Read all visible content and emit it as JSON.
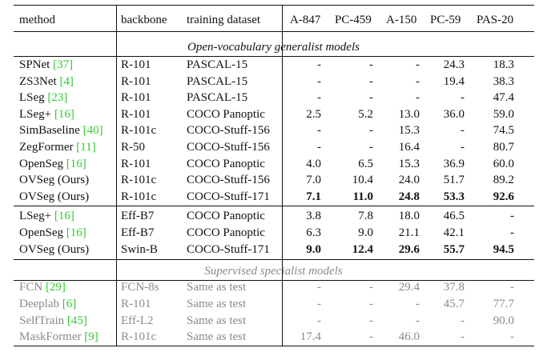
{
  "headers": {
    "method": "method",
    "backbone": "backbone",
    "dataset": "training dataset",
    "a847": "A-847",
    "pc459": "PC-459",
    "a150": "A-150",
    "pc59": "PC-59",
    "pas20": "PAS-20"
  },
  "sections": {
    "generalist": "Open-vocabulary generalist models",
    "specialist": "Supervised specialist models"
  },
  "group1": [
    {
      "name": "SPNet ",
      "cite": "[37]",
      "backbone": "R-101",
      "dataset": "PASCAL-15",
      "v": [
        "-",
        "-",
        "-",
        "24.3",
        "18.3"
      ]
    },
    {
      "name": "ZS3Net ",
      "cite": "[4]",
      "backbone": "R-101",
      "dataset": "PASCAL-15",
      "v": [
        "-",
        "-",
        "-",
        "19.4",
        "38.3"
      ]
    },
    {
      "name": "LSeg ",
      "cite": "[23]",
      "backbone": "R-101",
      "dataset": "PASCAL-15",
      "v": [
        "-",
        "-",
        "-",
        "-",
        "47.4"
      ]
    },
    {
      "name": "LSeg+ ",
      "cite": "[16]",
      "backbone": "R-101",
      "dataset": "COCO Panoptic",
      "v": [
        "2.5",
        "5.2",
        "13.0",
        "36.0",
        "59.0"
      ]
    },
    {
      "name": "SimBaseline ",
      "cite": "[40]",
      "backbone": "R-101c",
      "dataset": "COCO-Stuff-156",
      "v": [
        "-",
        "-",
        "15.3",
        "-",
        "74.5"
      ]
    },
    {
      "name": "ZegFormer ",
      "cite": "[11]",
      "backbone": "R-50",
      "dataset": "COCO-Stuff-156",
      "v": [
        "-",
        "-",
        "16.4",
        "-",
        "80.7"
      ]
    },
    {
      "name": "OpenSeg ",
      "cite": "[16]",
      "backbone": "R-101",
      "dataset": "COCO Panoptic",
      "v": [
        "4.0",
        "6.5",
        "15.3",
        "36.9",
        "60.0"
      ]
    },
    {
      "name": "OVSeg (Ours)",
      "cite": "",
      "backbone": "R-101c",
      "dataset": "COCO-Stuff-156",
      "v": [
        "7.0",
        "10.4",
        "24.0",
        "51.7",
        "89.2"
      ]
    },
    {
      "name": "OVSeg (Ours)",
      "cite": "",
      "backbone": "R-101c",
      "dataset": "COCO-Stuff-171",
      "v": [
        "7.1",
        "11.0",
        "24.8",
        "53.3",
        "92.6"
      ],
      "bold": true
    }
  ],
  "group2": [
    {
      "name": "LSeg+ ",
      "cite": "[16]",
      "backbone": "Eff-B7",
      "dataset": "COCO Panoptic",
      "v": [
        "3.8",
        "7.8",
        "18.0",
        "46.5",
        "-"
      ]
    },
    {
      "name": "OpenSeg ",
      "cite": "[16]",
      "backbone": "Eff-B7",
      "dataset": "COCO Panoptic",
      "v": [
        "6.3",
        "9.0",
        "21.1",
        "42.1",
        "-"
      ]
    },
    {
      "name": "OVSeg (Ours)",
      "cite": "",
      "backbone": "Swin-B",
      "dataset": "COCO-Stuff-171",
      "v": [
        "9.0",
        "12.4",
        "29.6",
        "55.7",
        "94.5"
      ],
      "bold": true
    }
  ],
  "group3": [
    {
      "name": "FCN ",
      "cite": "[29]",
      "backbone": "FCN-8s",
      "dataset": "Same as test",
      "v": [
        "-",
        "-",
        "29.4",
        "37.8",
        "-"
      ]
    },
    {
      "name": "Deeplab ",
      "cite": "[6]",
      "backbone": "R-101",
      "dataset": "Same as test",
      "v": [
        "-",
        "-",
        "-",
        "45.7",
        "77.7"
      ]
    },
    {
      "name": "SelfTrain ",
      "cite": "[45]",
      "backbone": "Eff-L2",
      "dataset": "Same as test",
      "v": [
        "-",
        "-",
        "-",
        "-",
        "90.0"
      ]
    },
    {
      "name": "MaskFormer ",
      "cite": "[9]",
      "backbone": "R-101c",
      "dataset": "Same as test",
      "v": [
        "17.4",
        "-",
        "46.0",
        "-",
        "-"
      ]
    }
  ]
}
